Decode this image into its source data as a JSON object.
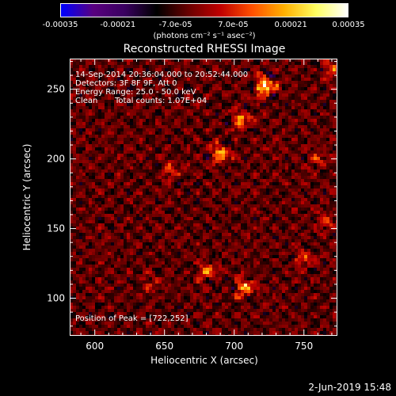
{
  "colorbar": {
    "colors": [
      "#0000ff",
      "#5a0080",
      "#3a0060",
      "#000000",
      "#6a0000",
      "#c00000",
      "#ff5000",
      "#ffb000",
      "#ffff60",
      "#ffffff"
    ],
    "ticks": [
      "-0.00035",
      "-0.00021",
      "-7.0e-05",
      "7.0e-05",
      "0.00021",
      "0.00035"
    ],
    "units": "(photons cm⁻² s⁻¹ asec⁻²)"
  },
  "chart_data": {
    "type": "heatmap",
    "title": "Reconstructed RHESSI Image",
    "xlabel": "Heliocentric X (arcsec)",
    "ylabel": "Heliocentric Y (arcsec)",
    "xlim": [
      582,
      774
    ],
    "ylim": [
      73,
      272
    ],
    "x_ticks": [
      600,
      650,
      700,
      750
    ],
    "y_ticks": [
      100,
      150,
      200,
      250
    ],
    "value_range": [
      -0.00035,
      0.00035
    ],
    "peak": [
      722,
      252
    ],
    "hotspots": [
      {
        "x": 722,
        "y": 252,
        "value": 0.00035
      },
      {
        "x": 705,
        "y": 228,
        "value": 0.00022
      },
      {
        "x": 690,
        "y": 203,
        "value": 0.00024
      },
      {
        "x": 655,
        "y": 192,
        "value": 0.00012
      },
      {
        "x": 708,
        "y": 108,
        "value": 0.00026
      },
      {
        "x": 680,
        "y": 120,
        "value": 0.00018
      },
      {
        "x": 750,
        "y": 128,
        "value": 0.00015
      },
      {
        "x": 765,
        "y": 155,
        "value": 0.00012
      },
      {
        "x": 760,
        "y": 200,
        "value": 0.0001
      },
      {
        "x": 640,
        "y": 110,
        "value": 8e-05
      },
      {
        "x": 770,
        "y": 265,
        "value": 0.00014
      }
    ]
  },
  "annotations": {
    "time_range": "14-Sep-2014 20:36:04.000 to 20:52:44.000",
    "detectors": "Detectors: 3F 8F 9F, Att 0",
    "energy_range": "Energy Range: 25.0 - 50.0 keV",
    "clean_label": "Clean",
    "total_counts": "Total counts: 1.07E+04",
    "peak_position": "Position of Peak = [722,252]"
  },
  "timestamp": "2-Jun-2019 15:48"
}
